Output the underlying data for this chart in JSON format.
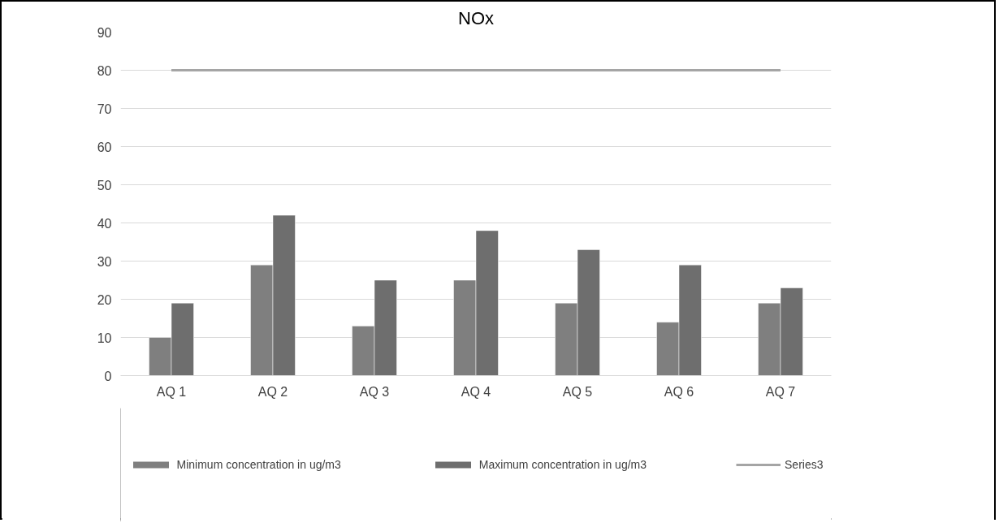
{
  "chart_data": {
    "type": "bar",
    "title": "NOx",
    "categories": [
      "AQ 1",
      "AQ 2",
      "AQ 3",
      "AQ 4",
      "AQ 5",
      "AQ 6",
      "AQ 7"
    ],
    "series": [
      {
        "name": "Minimum concentration in ug/m3",
        "color": "#7f7f7f",
        "values": [
          10,
          29,
          13,
          25,
          19,
          14,
          19
        ]
      },
      {
        "name": "Maximum concentration in ug/m3",
        "color": "#6e6e6e",
        "values": [
          19,
          42,
          25,
          38,
          33,
          29,
          23
        ]
      },
      {
        "name": "Series3",
        "type": "line",
        "color": "#a5a5a5",
        "values": [
          80,
          80,
          80,
          80,
          80,
          80,
          80
        ]
      }
    ],
    "ylim": [
      0,
      90
    ],
    "yticks": [
      0,
      10,
      20,
      30,
      40,
      50,
      60,
      70,
      80,
      90
    ],
    "grid": "y",
    "legend": "bottom"
  }
}
